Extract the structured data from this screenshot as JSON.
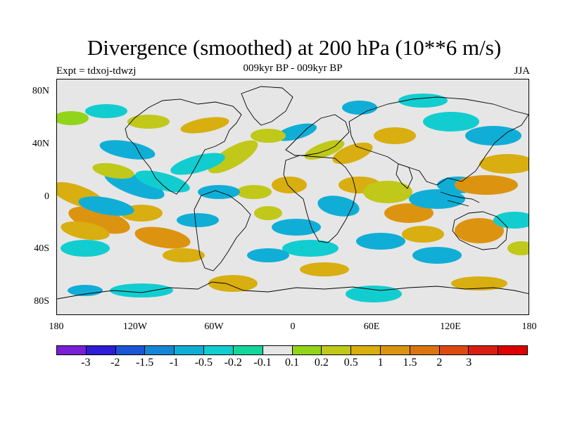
{
  "title": "Divergence (smoothed) at 200 hPa (10**6 m/s)",
  "subtitle": "009kyr BP - 009kyr BP",
  "experiment": "Expt = tdxoj-tdwzj",
  "season": "JJA",
  "y_axis_labels": [
    "80N",
    "40N",
    "0",
    "40S",
    "80S"
  ],
  "x_axis_labels": [
    "180",
    "120W",
    "60W",
    "0",
    "60E",
    "120E",
    "180"
  ],
  "colorbar": {
    "colors": [
      "#7a1fd6",
      "#2e1cd6",
      "#1a55d4",
      "#1486d6",
      "#10aed6",
      "#12cdd0",
      "#14d69c",
      "#e6e6e6",
      "#92d41a",
      "#c0c81a",
      "#d8ae10",
      "#dc9410",
      "#dc7410",
      "#dc4a10",
      "#d81e10",
      "#dc0000"
    ],
    "labels": [
      "-3",
      "-2",
      "-1.5",
      "-1",
      "-0.5",
      "-0.2",
      "-0.1",
      "0.1",
      "0.2",
      "0.5",
      "1",
      "1.5",
      "2",
      "3"
    ]
  },
  "chart_data": {
    "type": "heatmap",
    "title": "Divergence (smoothed) at 200 hPa (10**6 m/s)",
    "subtitle": "009kyr BP - 009kyr BP",
    "x_ticks": [
      "180",
      "120W",
      "60W",
      "0",
      "60E",
      "120E",
      "180"
    ],
    "y_ticks": [
      "80N",
      "40N",
      "0",
      "40S",
      "80S"
    ],
    "xlim": [
      -180,
      180
    ],
    "ylim": [
      -90,
      90
    ],
    "levels": [
      -3,
      -2,
      -1.5,
      -1,
      -0.5,
      -0.2,
      -0.1,
      0.1,
      0.2,
      0.5,
      1,
      1.5,
      2,
      3
    ]
  }
}
